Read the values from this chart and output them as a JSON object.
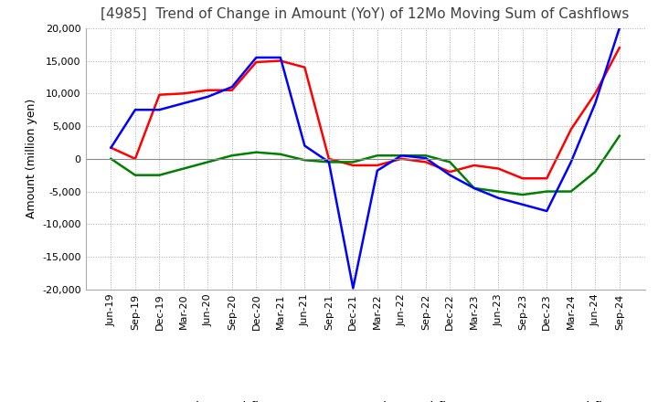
{
  "title": "[4985]  Trend of Change in Amount (YoY) of 12Mo Moving Sum of Cashflows",
  "ylabel": "Amount (million yen)",
  "ylim": [
    -20000,
    20000
  ],
  "yticks": [
    -20000,
    -15000,
    -10000,
    -5000,
    0,
    5000,
    10000,
    15000,
    20000
  ],
  "x_labels": [
    "Jun-19",
    "Sep-19",
    "Dec-19",
    "Mar-20",
    "Jun-20",
    "Sep-20",
    "Dec-20",
    "Mar-21",
    "Jun-21",
    "Sep-21",
    "Dec-21",
    "Mar-22",
    "Jun-22",
    "Sep-22",
    "Dec-22",
    "Mar-23",
    "Jun-23",
    "Sep-23",
    "Dec-23",
    "Mar-24",
    "Jun-24",
    "Sep-24"
  ],
  "operating_cashflow": [
    1700,
    0,
    9800,
    10000,
    10500,
    10500,
    14800,
    15000,
    14000,
    0,
    -1000,
    -1000,
    0,
    -500,
    -2000,
    -1000,
    -1500,
    -3000,
    -3000,
    4500,
    10000,
    17000
  ],
  "investing_cashflow": [
    0,
    -2500,
    -2500,
    -1500,
    -500,
    500,
    1000,
    700,
    -200,
    -500,
    -500,
    500,
    500,
    500,
    -500,
    -4500,
    -5000,
    -5500,
    -5000,
    -5000,
    -2000,
    3500
  ],
  "free_cashflow": [
    1700,
    7500,
    7500,
    8500,
    9500,
    11000,
    15500,
    15500,
    2000,
    -500,
    -19800,
    -1800,
    500,
    100,
    -2500,
    -4500,
    -6000,
    -7000,
    -8000,
    -500,
    8500,
    20000
  ],
  "operating_color": "#FF0000",
  "investing_color": "#008000",
  "free_color": "#0000FF",
  "background_color": "#FFFFFF",
  "grid_color": "#AAAAAA",
  "title_color": "#404040",
  "title_fontsize": 11,
  "label_fontsize": 9,
  "tick_fontsize": 8
}
